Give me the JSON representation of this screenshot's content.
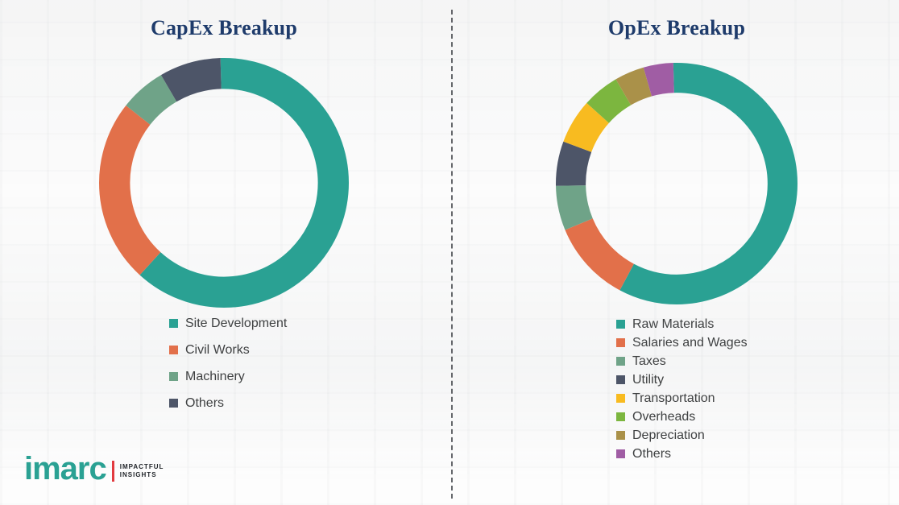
{
  "chart_data": [
    {
      "type": "pie",
      "subtype": "donut",
      "title": "CapEx Breakup",
      "labels": [
        "Site Development",
        "Civil Works",
        "Machinery",
        "Others"
      ],
      "values": [
        62,
        24,
        6,
        8
      ],
      "colors": [
        "#2aa193",
        "#e2704a",
        "#6fa388",
        "#4d5568"
      ],
      "legend_position": "below",
      "title_color": "#1e3b6b"
    },
    {
      "type": "pie",
      "subtype": "donut",
      "title": "OpEx Breakup",
      "labels": [
        "Raw Materials",
        "Salaries and Wages",
        "Taxes",
        "Utility",
        "Transportation",
        "Overheads",
        "Depreciation",
        "Others"
      ],
      "values": [
        58,
        11,
        6,
        6,
        6,
        5,
        4,
        4
      ],
      "colors": [
        "#2aa193",
        "#e2704a",
        "#6fa388",
        "#4d5568",
        "#f8bb20",
        "#7cb63f",
        "#aa9149",
        "#a05da4"
      ],
      "legend_position": "below",
      "title_color": "#1e3b6b"
    }
  ],
  "logo": {
    "brand": "imarc",
    "tagline_line1": "IMPACTFUL",
    "tagline_line2": "INSIGHTS",
    "brand_color": "#2aa193",
    "accent_color": "#e23a3f"
  }
}
